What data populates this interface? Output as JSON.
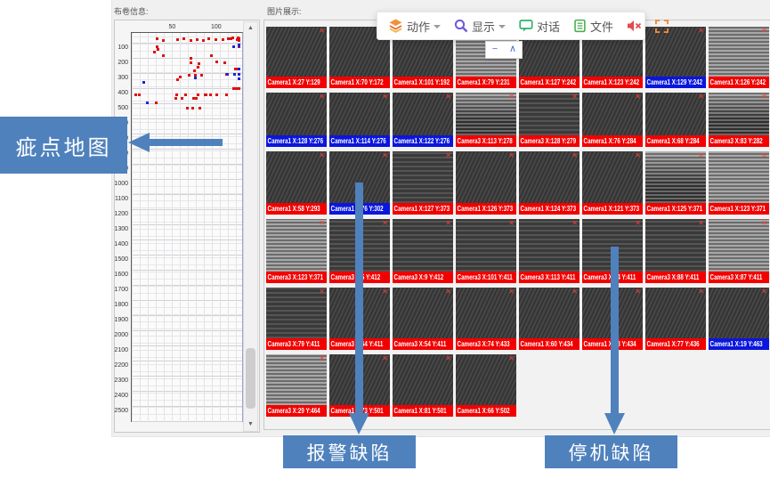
{
  "left_panel": {
    "title": "布卷信息:",
    "scrollbar": {
      "up_glyph": "▲",
      "down_glyph": "▼"
    }
  },
  "right_panel": {
    "title": "图片展示:",
    "tile_corner_mark": "✕",
    "tiles": [
      {
        "label": "Camera1 X:27 Y:129",
        "type": "stop",
        "pattern": 0
      },
      {
        "label": "Camera1 X:70 Y:172",
        "type": "stop",
        "pattern": 0
      },
      {
        "label": "Camera1 X:101 Y:192",
        "type": "stop",
        "pattern": 0
      },
      {
        "label": "Camera1 X:79 Y:231",
        "type": "stop",
        "pattern": 2
      },
      {
        "label": "Camera1 X:127 Y:242",
        "type": "stop",
        "pattern": 0
      },
      {
        "label": "Camera1 X:123 Y:242",
        "type": "stop",
        "pattern": 0
      },
      {
        "label": "Camera1 X:129 Y:242",
        "type": "alarm",
        "pattern": 0
      },
      {
        "label": "Camera1 X:126 Y:242",
        "type": "stop",
        "pattern": 2
      },
      {
        "label": "Camera1 X:128 Y:276",
        "type": "alarm",
        "pattern": 0
      },
      {
        "label": "Camera1 X:114 Y:276",
        "type": "alarm",
        "pattern": 0
      },
      {
        "label": "Camera1 X:122 Y:276",
        "type": "alarm",
        "pattern": 0
      },
      {
        "label": "Camera3 X:113 Y:278",
        "type": "stop",
        "pattern": 3
      },
      {
        "label": "Camera3 X:128 Y:279",
        "type": "stop",
        "pattern": 1
      },
      {
        "label": "Camera1 X:76 Y:284",
        "type": "stop",
        "pattern": 0
      },
      {
        "label": "Camera1 X:68 Y:284",
        "type": "stop",
        "pattern": 0
      },
      {
        "label": "Camera3 X:83 Y:282",
        "type": "stop",
        "pattern": 3
      },
      {
        "label": "Camera1 X:58 Y:293",
        "type": "stop",
        "pattern": 0
      },
      {
        "label": "Camera1 X:76 Y:302",
        "type": "alarm",
        "pattern": 0
      },
      {
        "label": "Camera1 X:127 Y:373",
        "type": "stop",
        "pattern": 1
      },
      {
        "label": "Camera1 X:126 Y:373",
        "type": "stop",
        "pattern": 0
      },
      {
        "label": "Camera1 X:124 Y:373",
        "type": "stop",
        "pattern": 0
      },
      {
        "label": "Camera1 X:121 Y:373",
        "type": "stop",
        "pattern": 0
      },
      {
        "label": "Camera1 X:125 Y:371",
        "type": "stop",
        "pattern": 3
      },
      {
        "label": "Camera1 X:123 Y:371",
        "type": "stop",
        "pattern": 2
      },
      {
        "label": "Camera3 X:123 Y:371",
        "type": "stop",
        "pattern": 2
      },
      {
        "label": "Camera3 X:5 Y:412",
        "type": "stop",
        "pattern": 1
      },
      {
        "label": "Camera3 X:9 Y:412",
        "type": "stop",
        "pattern": 1
      },
      {
        "label": "Camera3 X:101 Y:411",
        "type": "stop",
        "pattern": 1
      },
      {
        "label": "Camera3 X:113 Y:411",
        "type": "stop",
        "pattern": 1
      },
      {
        "label": "Camera3 X:94 Y:411",
        "type": "stop",
        "pattern": 1
      },
      {
        "label": "Camera3 X:88 Y:411",
        "type": "stop",
        "pattern": 1
      },
      {
        "label": "Camera3 X:87 Y:411",
        "type": "stop",
        "pattern": 2
      },
      {
        "label": "Camera3 X:79 Y:411",
        "type": "stop",
        "pattern": 1
      },
      {
        "label": "Camera3 X:64 Y:411",
        "type": "stop",
        "pattern": 0
      },
      {
        "label": "Camera3 X:54 Y:411",
        "type": "stop",
        "pattern": 0
      },
      {
        "label": "Camera3 X:74 Y:433",
        "type": "stop",
        "pattern": 0
      },
      {
        "label": "Camera1 X:60 Y:434",
        "type": "stop",
        "pattern": 0
      },
      {
        "label": "Camera1 X:53 Y:434",
        "type": "stop",
        "pattern": 0
      },
      {
        "label": "Camera1 X:77 Y:436",
        "type": "stop",
        "pattern": 0
      },
      {
        "label": "Camera1 X:19 Y:463",
        "type": "alarm",
        "pattern": 0
      },
      {
        "label": "Camera3 X:29 Y:464",
        "type": "stop",
        "pattern": 2
      },
      {
        "label": "Camera1 X:73 Y:501",
        "type": "stop",
        "pattern": 0
      },
      {
        "label": "Camera1 X:81 Y:501",
        "type": "stop",
        "pattern": 0
      },
      {
        "label": "Camera1 X:66 Y:502",
        "type": "stop",
        "pattern": 0
      }
    ]
  },
  "toolbar": {
    "items": [
      {
        "id": "action",
        "label": "动作",
        "icon": "layers-icon",
        "dropdown": true
      },
      {
        "id": "display",
        "label": "显示",
        "icon": "search-icon",
        "dropdown": true
      },
      {
        "id": "dialog",
        "label": "对话",
        "icon": "chat-icon",
        "dropdown": false
      },
      {
        "id": "file",
        "label": "文件",
        "icon": "file-icon",
        "dropdown": false
      },
      {
        "id": "mute",
        "label": "",
        "icon": "mute-icon",
        "dropdown": false
      },
      {
        "id": "fullscreen",
        "label": "",
        "icon": "fullscreen-icon",
        "dropdown": false
      }
    ],
    "collapse": {
      "minus": "−",
      "chevron": "∧"
    }
  },
  "annotations": {
    "map_label": "疵点地图",
    "alarm_label": "报警缺陷",
    "stop_label": "停机缺陷",
    "accent_color": "#4f81bd"
  },
  "chart_data": {
    "type": "scatter",
    "title": "疵点地图",
    "xlabel": "",
    "ylabel": "",
    "x_ticks": [
      50,
      100
    ],
    "y_ticks": [
      100,
      200,
      300,
      400,
      500,
      600,
      700,
      800,
      900,
      1000,
      1100,
      1200,
      1300,
      1400,
      1500,
      1600,
      1700,
      1800,
      1900,
      2000,
      2100,
      2200,
      2300,
      2400,
      2500
    ],
    "xlim": [
      0,
      130
    ],
    "ylim": [
      0,
      2560
    ],
    "grid": true,
    "legend_position": "none",
    "series": [
      {
        "name": "停机缺陷",
        "color": "#e01010",
        "points": [
          [
            27,
            129
          ],
          [
            70,
            172
          ],
          [
            101,
            192
          ],
          [
            79,
            231
          ],
          [
            127,
            242
          ],
          [
            123,
            242
          ],
          [
            126,
            242
          ],
          [
            113,
            278
          ],
          [
            128,
            279
          ],
          [
            76,
            284
          ],
          [
            68,
            284
          ],
          [
            83,
            282
          ],
          [
            58,
            293
          ],
          [
            127,
            373
          ],
          [
            126,
            373
          ],
          [
            124,
            373
          ],
          [
            121,
            373
          ],
          [
            125,
            371
          ],
          [
            123,
            371
          ],
          [
            123,
            371
          ],
          [
            5,
            412
          ],
          [
            9,
            412
          ],
          [
            101,
            411
          ],
          [
            113,
            411
          ],
          [
            94,
            411
          ],
          [
            88,
            411
          ],
          [
            87,
            411
          ],
          [
            79,
            411
          ],
          [
            64,
            411
          ],
          [
            54,
            411
          ],
          [
            74,
            433
          ],
          [
            60,
            434
          ],
          [
            53,
            434
          ],
          [
            77,
            436
          ],
          [
            29,
            464
          ],
          [
            73,
            501
          ],
          [
            81,
            501
          ],
          [
            66,
            502
          ],
          [
            30,
            40
          ],
          [
            38,
            55
          ],
          [
            55,
            48
          ],
          [
            62,
            42
          ],
          [
            70,
            52
          ],
          [
            78,
            45
          ],
          [
            85,
            52
          ],
          [
            92,
            40
          ],
          [
            100,
            48
          ],
          [
            108,
            45
          ],
          [
            115,
            42
          ],
          [
            120,
            38
          ],
          [
            125,
            48
          ],
          [
            130,
            42
          ],
          [
            134,
            52
          ],
          [
            118,
            40
          ],
          [
            126,
            38
          ],
          [
            131,
            48
          ],
          [
            30,
            95
          ],
          [
            32,
            110
          ],
          [
            128,
            95
          ],
          [
            38,
            150
          ],
          [
            95,
            155
          ],
          [
            70,
            200
          ],
          [
            80,
            205
          ],
          [
            110,
            200
          ],
          [
            75,
            250
          ],
          [
            55,
            310
          ],
          [
            132,
            308
          ]
        ]
      },
      {
        "name": "报警缺陷",
        "color": "#1d23d8",
        "points": [
          [
            129,
            242
          ],
          [
            128,
            276
          ],
          [
            114,
            276
          ],
          [
            122,
            276
          ],
          [
            76,
            302
          ],
          [
            19,
            463
          ],
          [
            128,
            82
          ],
          [
            134,
            86
          ],
          [
            121,
            95
          ],
          [
            15,
            330
          ],
          [
            128,
            305
          ]
        ]
      }
    ]
  }
}
